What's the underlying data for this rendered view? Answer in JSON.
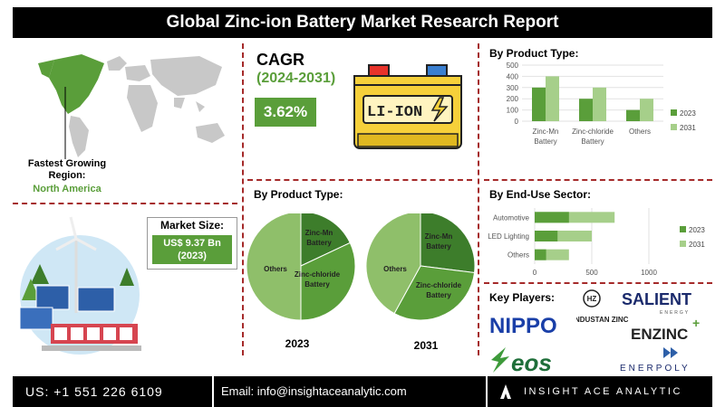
{
  "header": {
    "title": "Global  Zinc-ion Battery Market Research Report"
  },
  "region": {
    "label": "Fastest Growing Region:",
    "value": "North America"
  },
  "cagr": {
    "label": "CAGR",
    "period": "(2024-2031)",
    "value": "3.62%",
    "battery_text": "LI-ION"
  },
  "market_size": {
    "label": "Market Size:",
    "value": "US$ 9.37 Bn",
    "year": "(2023)"
  },
  "product_bar": {
    "title": "By Product Type:",
    "legend": [
      "2023",
      "2031"
    ]
  },
  "pies": {
    "title": "By Product Type:",
    "labels": [
      "Zinc-Mn Battery",
      "Zinc-chloride Battery",
      "Others"
    ],
    "year_2023": "2023",
    "year_2031": "2031"
  },
  "enduse": {
    "title": "By End-Use Sector:",
    "legend": [
      "2023",
      "2031"
    ]
  },
  "players": {
    "title": "Key Players:",
    "logos": [
      "SALIENT",
      "ENERGY",
      "HINDUSTAN ZINC",
      "NIPPO",
      "ENZINC",
      "eos",
      "ENERPOLY"
    ]
  },
  "footer": {
    "phone": "US: +1 551 226 6109",
    "email": "Email: info@insightaceanalytic.com",
    "brand": "INSIGHT ACE ANALYTIC"
  },
  "chart_data": [
    {
      "type": "bar",
      "title": "By Product Type:",
      "categories": [
        "Zinc-Mn Battery",
        "Zinc-chloride Battery",
        "Others"
      ],
      "series": [
        {
          "name": "2023",
          "values": [
            300,
            200,
            100
          ]
        },
        {
          "name": "2031",
          "values": [
            400,
            300,
            200
          ]
        }
      ],
      "yticks": [
        0,
        100,
        200,
        300,
        400,
        500
      ],
      "ylim": [
        0,
        500
      ],
      "colors": [
        "#5a9e3a",
        "#a6cf8a"
      ]
    },
    {
      "type": "pie",
      "title": "2023",
      "labels": [
        "Zinc-Mn Battery",
        "Zinc-chloride Battery",
        "Others"
      ],
      "values": [
        18,
        32,
        50
      ],
      "colors": [
        "#3d7d2b",
        "#5a9e3a",
        "#8fbf6a"
      ]
    },
    {
      "type": "pie",
      "title": "2031",
      "labels": [
        "Zinc-Mn Battery",
        "Zinc-chloride Battery",
        "Others"
      ],
      "values": [
        27,
        31,
        42
      ],
      "colors": [
        "#3d7d2b",
        "#5a9e3a",
        "#8fbf6a"
      ]
    },
    {
      "type": "bar",
      "orientation": "horizontal",
      "title": "By End-Use Sector:",
      "categories": [
        "Automotive",
        "LED Lighting",
        "Others"
      ],
      "series": [
        {
          "name": "2023",
          "values": [
            300,
            200,
            100
          ]
        },
        {
          "name": "2031",
          "values": [
            700,
            500,
            300
          ]
        }
      ],
      "xticks": [
        0,
        500,
        1000
      ],
      "xlim": [
        0,
        1000
      ],
      "colors": [
        "#5a9e3a",
        "#a6cf8a"
      ]
    }
  ]
}
